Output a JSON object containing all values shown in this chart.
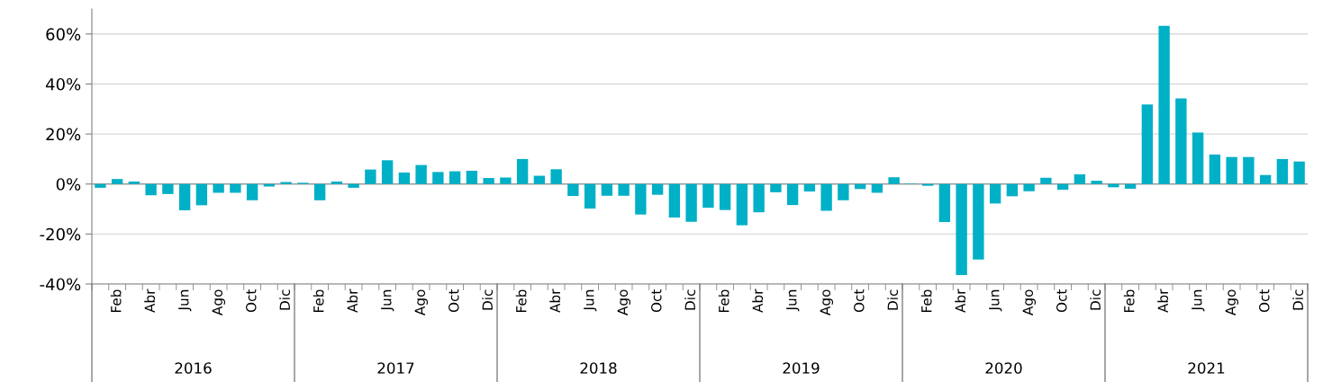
{
  "chart_data": {
    "type": "bar",
    "categories": [
      null,
      "Feb",
      null,
      "Abr",
      null,
      "Jun",
      null,
      "Ago",
      null,
      "Oct",
      null,
      "Dic",
      null,
      "Feb",
      null,
      "Abr",
      null,
      "Jun",
      null,
      "Ago",
      null,
      "Oct",
      null,
      "Dic",
      null,
      "Feb",
      null,
      "Abr",
      null,
      "Jun",
      null,
      "Ago",
      null,
      "Oct",
      null,
      "Dic",
      null,
      "Feb",
      null,
      "Abr",
      null,
      "Jun",
      null,
      "Ago",
      null,
      "Oct",
      null,
      "Dic",
      null,
      "Feb",
      null,
      "Abr",
      null,
      "Jun",
      null,
      "Ago",
      null,
      "Oct",
      null,
      "Dic",
      null,
      "Feb",
      null,
      "Abr",
      null,
      "Jun",
      null,
      "Ago",
      null,
      "Oct",
      null,
      "Dic"
    ],
    "values": [
      -1.5,
      2,
      1,
      -4.5,
      -4,
      -10.5,
      -8.5,
      -3.5,
      -3.5,
      -6.5,
      -1,
      0.8,
      0.5,
      -6.5,
      1,
      -1.5,
      5.8,
      9.5,
      4.6,
      7.6,
      4.8,
      5.1,
      5.3,
      2.4,
      2.6,
      10,
      3.3,
      5.9,
      -4.8,
      -9.8,
      -4.7,
      -4.7,
      -12.2,
      -4.3,
      -13.4,
      -15.1,
      -9.5,
      -10.4,
      -16.5,
      -11.3,
      -3.3,
      -8.4,
      -3,
      -10.7,
      -6.5,
      -2,
      -3.5,
      2.7,
      0.2,
      -0.7,
      -15.2,
      -36.4,
      -30.2,
      -7.8,
      -4.9,
      -2.9,
      2.5,
      -2.3,
      3.9,
      1.3,
      -1.3,
      -1.9,
      31.8,
      63.3,
      34.2,
      20.6,
      11.8,
      10.8,
      10.8,
      3.6,
      10,
      9
    ],
    "color": "#00b0c6",
    "ylim": [
      -40,
      70
    ],
    "yticks": [
      {
        "value": -40,
        "label": "-40%"
      },
      {
        "value": -20,
        "label": "-20%"
      },
      {
        "value": 0,
        "label": "0%"
      },
      {
        "value": 20,
        "label": "20%"
      },
      {
        "value": 40,
        "label": "40%"
      },
      {
        "value": 60,
        "label": "60%"
      }
    ],
    "grid": "y",
    "annotations": [
      "2016",
      "2017",
      "2018",
      "2019",
      "2020",
      "2021"
    ]
  }
}
